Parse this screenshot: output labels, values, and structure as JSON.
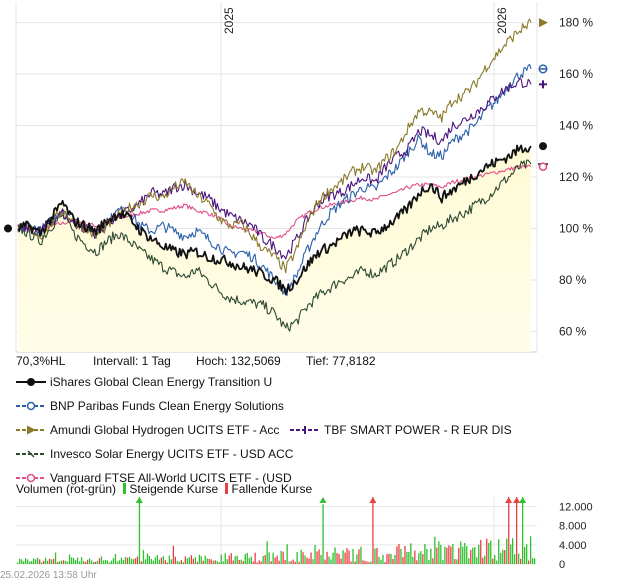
{
  "chart_data": [
    {
      "type": "line",
      "x_ticks": [
        "2025",
        "2026"
      ],
      "y_ticks": [
        "60 %",
        "80 %",
        "100 %",
        "120 %",
        "140 %",
        "160 %",
        "180 %"
      ],
      "ylim": [
        52,
        188
      ],
      "y_range_pct": [
        60,
        180
      ],
      "grid": true,
      "legend_position": "bottom",
      "info": {
        "hl": "70,3%HL",
        "interval": "Intervall: 1 Tag",
        "high": "Hoch: 132,5069",
        "low": "Tief: 77,8182"
      },
      "series": [
        {
          "name": "iShares Global Clean Energy Transition U",
          "color": "#111111",
          "marker": "dot",
          "values": [
            100,
            101,
            98,
            104,
            110,
            103,
            101,
            99,
            103,
            106,
            104,
            99,
            96,
            93,
            91,
            90,
            91,
            89,
            88,
            87,
            85,
            84,
            82,
            80,
            76,
            80,
            86,
            91,
            93,
            96,
            99,
            99,
            98,
            101,
            104,
            108,
            114,
            117,
            112,
            115,
            118,
            121,
            124,
            126,
            128,
            131,
            132
          ]
        },
        {
          "name": "BNP Paribas Funds Clean Energy Solutions",
          "color": "#2a5fa8",
          "marker": "dash-circle",
          "values": [
            100,
            101,
            99,
            103,
            108,
            104,
            101,
            98,
            102,
            107,
            106,
            101,
            99,
            101,
            99,
            97,
            99,
            96,
            93,
            90,
            91,
            89,
            85,
            80,
            75,
            82,
            92,
            100,
            106,
            110,
            113,
            116,
            115,
            120,
            124,
            130,
            135,
            129,
            128,
            134,
            137,
            140,
            146,
            150,
            156,
            160,
            162
          ]
        },
        {
          "name": "Amundi Global Hydrogen UCITS ETF - Acc",
          "color": "#8a7a2a",
          "marker": "triangle",
          "values": [
            100,
            100,
            97,
            102,
            107,
            103,
            100,
            97,
            101,
            105,
            108,
            110,
            113,
            112,
            116,
            118,
            113,
            110,
            104,
            101,
            102,
            97,
            92,
            89,
            84,
            92,
            103,
            111,
            115,
            118,
            122,
            124,
            122,
            127,
            131,
            139,
            146,
            145,
            143,
            150,
            152,
            156,
            163,
            168,
            173,
            177,
            180
          ]
        },
        {
          "name": "TBF SMART POWER - R EUR DIS",
          "color": "#4a137d",
          "marker": "plus",
          "values": [
            100,
            100,
            99,
            103,
            106,
            102,
            100,
            98,
            102,
            105,
            107,
            110,
            114,
            113,
            116,
            117,
            114,
            112,
            108,
            105,
            103,
            101,
            96,
            93,
            89,
            96,
            104,
            110,
            113,
            114,
            117,
            120,
            118,
            124,
            128,
            131,
            138,
            136,
            134,
            140,
            142,
            145,
            148,
            152,
            155,
            157,
            156
          ]
        },
        {
          "name": "Invesco Solar Energy UCITS ETF - USD ACC",
          "color": "#2d4a33",
          "marker": "dash",
          "values": [
            100,
            98,
            95,
            101,
            105,
            98,
            94,
            91,
            95,
            98,
            95,
            91,
            88,
            85,
            83,
            81,
            84,
            80,
            76,
            73,
            72,
            71,
            70,
            67,
            61,
            64,
            70,
            74,
            77,
            80,
            81,
            84,
            82,
            85,
            88,
            92,
            96,
            100,
            101,
            104,
            106,
            109,
            112,
            116,
            120,
            124,
            125
          ]
        },
        {
          "name": "Vanguard FTSE All-World UCITS ETF - (USD",
          "color": "#e0508a",
          "marker": "circle",
          "values": [
            100,
            100,
            99,
            101,
            102,
            103,
            102,
            101,
            102,
            104,
            105,
            106,
            107,
            107,
            108,
            109,
            107,
            106,
            104,
            101,
            100,
            99,
            98,
            96,
            98,
            103,
            106,
            108,
            109,
            110,
            111,
            112,
            111,
            113,
            114,
            116,
            117,
            117,
            116,
            118,
            119,
            120,
            121,
            122,
            123,
            124,
            124
          ]
        }
      ]
    },
    {
      "type": "bar",
      "title": "Volumen (rot-grün)",
      "legend": [
        "Steigende Kurse",
        "Fallende Kurse"
      ],
      "y_ticks": [
        "12.000",
        "8.000",
        "4.000",
        "0"
      ],
      "ylim": [
        0,
        14000
      ],
      "colors": {
        "up": "#2fbf2f",
        "down": "#e84040"
      }
    }
  ],
  "timestamp": "25.02.2026 13:58 Uhr"
}
